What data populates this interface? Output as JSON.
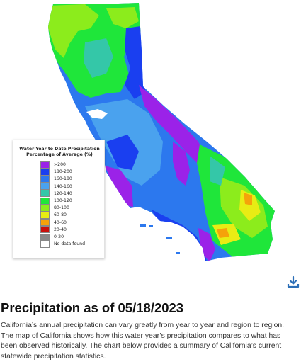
{
  "map": {
    "colors": {
      "gt200": "#9b22e8",
      "c180_200": "#1a3ff0",
      "c160_180": "#2c78ee",
      "c140_160": "#4aa2ee",
      "c120_140": "#34c7a8",
      "c100_120": "#1fe63a",
      "c80_100": "#8cec1c",
      "c60_80": "#e8ec14",
      "c40_60": "#f5a20a",
      "c20_40": "#c8100c",
      "c0_20": "#888888",
      "no_data": "#ffffff"
    }
  },
  "legend": {
    "title_line1": "Water Year to Date Precipitation",
    "title_line2": "Percentage of Average (%)",
    "items": [
      {
        "label": ">200",
        "color": "#9b22e8"
      },
      {
        "label": "180-200",
        "color": "#1a3ff0"
      },
      {
        "label": "160-180",
        "color": "#2c78ee"
      },
      {
        "label": "140-160",
        "color": "#4aa2ee"
      },
      {
        "label": "120-140",
        "color": "#34c7a8"
      },
      {
        "label": "100-120",
        "color": "#1fe63a"
      },
      {
        "label": "80-100",
        "color": "#8cec1c"
      },
      {
        "label": "60-80",
        "color": "#e8ec14"
      },
      {
        "label": "40-60",
        "color": "#f5a20a"
      },
      {
        "label": "20-40",
        "color": "#c8100c"
      },
      {
        "label": "0-20",
        "color": "#888888"
      },
      {
        "label": "No data found",
        "color": "#ffffff"
      }
    ]
  },
  "download": {
    "icon": "download-icon",
    "color": "#2c6fb7"
  },
  "section": {
    "heading": "Precipitation as of 05/18/2023",
    "description": "California’s annual precipitation can vary greatly from year to year and region to region. The map of California shows how this water year’s precipitation compares to what has been observed historically. The chart below provides a summary of California’s current statewide precipitation statistics."
  }
}
